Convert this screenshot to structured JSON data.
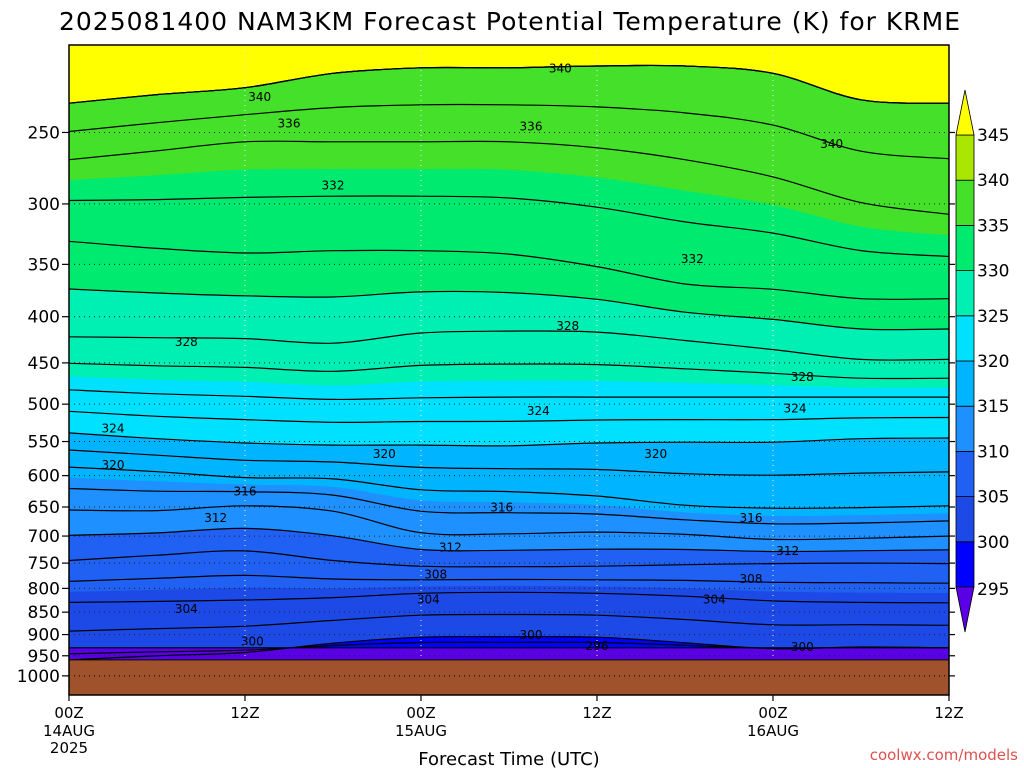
{
  "chart_data": {
    "type": "heatmap",
    "title": "2025081400 NAM3KM Forecast Potential Temperature (K) for KRME",
    "xlabel": "Forecast Time (UTC)",
    "ylabel": "",
    "credit": "coolwx.com/models",
    "y_scale": "log-pressure",
    "ylim": [
      1050,
      200
    ],
    "xlim": [
      0,
      60
    ],
    "y_ticks": [
      250,
      300,
      350,
      400,
      450,
      500,
      550,
      600,
      650,
      700,
      750,
      800,
      850,
      900,
      950,
      1000
    ],
    "x_ticks": [
      {
        "hour": 0,
        "label": "00Z",
        "sub1": "14AUG",
        "sub2": "2025"
      },
      {
        "hour": 12,
        "label": "12Z",
        "sub1": "",
        "sub2": ""
      },
      {
        "hour": 24,
        "label": "00Z",
        "sub1": "15AUG",
        "sub2": ""
      },
      {
        "hour": 36,
        "label": "12Z",
        "sub1": "",
        "sub2": ""
      },
      {
        "hour": 48,
        "label": "00Z",
        "sub1": "16AUG",
        "sub2": ""
      },
      {
        "hour": 60,
        "label": "12Z",
        "sub1": "",
        "sub2": ""
      }
    ],
    "grid": true,
    "colorbar": {
      "levels": [
        295,
        300,
        305,
        310,
        315,
        320,
        325,
        330,
        335,
        340,
        345
      ],
      "colors": [
        "#0000ff",
        "#1d4ae6",
        "#2060f2",
        "#1e90ff",
        "#00b4ff",
        "#00e0ff",
        "#00f0b4",
        "#00ea70",
        "#44e02a",
        "#aae600",
        "#ffff00"
      ],
      "extend_low_color": "#5a00e6",
      "extend_high_color": "#ffff00"
    },
    "contour_interval": 2,
    "contours": [
      {
        "theta": 296,
        "p": [
          931,
          931,
          931,
          931,
          931,
          931,
          931,
          931,
          931,
          931,
          931
        ]
      },
      {
        "theta": 300,
        "p": [
          960,
          950,
          942,
          920,
          906,
          905,
          906,
          919,
          933,
          929,
          931
        ]
      },
      {
        "theta": 304,
        "p": [
          829,
          827,
          824,
          819,
          810,
          808,
          810,
          816,
          826,
          829,
          830
        ]
      },
      {
        "theta": 308,
        "p": [
          745,
          735,
          727,
          745,
          756,
          757,
          756,
          753,
          751,
          750,
          751
        ]
      },
      {
        "theta": 312,
        "p": [
          655,
          656,
          648,
          657,
          694,
          696,
          693,
          697,
          706,
          704,
          700
        ]
      },
      {
        "theta": 316,
        "p": [
          587,
          594,
          603,
          605,
          622,
          625,
          632,
          647,
          652,
          651,
          648
        ]
      },
      {
        "theta": 320,
        "p": [
          538,
          546,
          552,
          555,
          555,
          556,
          552,
          551,
          551,
          546,
          545
        ]
      },
      {
        "theta": 324,
        "p": [
          482,
          487,
          490,
          494,
          492,
          491,
          491,
          491,
          491,
          491,
          491
        ]
      },
      {
        "theta": 328,
        "p": [
          421,
          422,
          423,
          428,
          417,
          415,
          416,
          425,
          435,
          446,
          446
        ]
      },
      {
        "theta": 332,
        "p": [
          330,
          336,
          340,
          338,
          338,
          341,
          352,
          368,
          373,
          382,
          382
        ]
      },
      {
        "theta": 336,
        "p": [
          268,
          262,
          256,
          256,
          256,
          256,
          260,
          268,
          280,
          299,
          308
        ]
      },
      {
        "theta": 340,
        "p": [
          232,
          227,
          223,
          215,
          212,
          212,
          211,
          211,
          215,
          230,
          232
        ]
      }
    ],
    "contour_labels": [
      {
        "value": "340",
        "hour": 13.0,
        "p": 228
      },
      {
        "value": "340",
        "hour": 33.5,
        "p": 212
      },
      {
        "value": "340",
        "hour": 52.0,
        "p": 257
      },
      {
        "value": "336",
        "hour": 15.0,
        "p": 244
      },
      {
        "value": "336",
        "hour": 31.5,
        "p": 246
      },
      {
        "value": "332",
        "hour": 18.0,
        "p": 286
      },
      {
        "value": "332",
        "hour": 42.5,
        "p": 345
      },
      {
        "value": "328",
        "hour": 8.0,
        "p": 426
      },
      {
        "value": "328",
        "hour": 34.0,
        "p": 409
      },
      {
        "value": "328",
        "hour": 50.0,
        "p": 466
      },
      {
        "value": "324",
        "hour": 3.0,
        "p": 531
      },
      {
        "value": "324",
        "hour": 32.0,
        "p": 508
      },
      {
        "value": "324",
        "hour": 49.5,
        "p": 505
      },
      {
        "value": "320",
        "hour": 3.0,
        "p": 583
      },
      {
        "value": "320",
        "hour": 21.5,
        "p": 567
      },
      {
        "value": "320",
        "hour": 40.0,
        "p": 567
      },
      {
        "value": "316",
        "hour": 12.0,
        "p": 624
      },
      {
        "value": "316",
        "hour": 29.5,
        "p": 650
      },
      {
        "value": "316",
        "hour": 46.5,
        "p": 668
      },
      {
        "value": "312",
        "hour": 10.0,
        "p": 668
      },
      {
        "value": "312",
        "hour": 26.0,
        "p": 720
      },
      {
        "value": "312",
        "hour": 49.0,
        "p": 726
      },
      {
        "value": "308",
        "hour": 25.0,
        "p": 771
      },
      {
        "value": "308",
        "hour": 46.5,
        "p": 780
      },
      {
        "value": "304",
        "hour": 8.0,
        "p": 842
      },
      {
        "value": "304",
        "hour": 24.5,
        "p": 822
      },
      {
        "value": "304",
        "hour": 44.0,
        "p": 822
      },
      {
        "value": "300",
        "hour": 12.5,
        "p": 915
      },
      {
        "value": "300",
        "hour": 31.5,
        "p": 900
      },
      {
        "value": "300",
        "hour": 50.0,
        "p": 928
      },
      {
        "value": "296",
        "hour": 36.0,
        "p": 925
      }
    ],
    "terrain_p": 960,
    "terrain_color": "#a0522d"
  }
}
